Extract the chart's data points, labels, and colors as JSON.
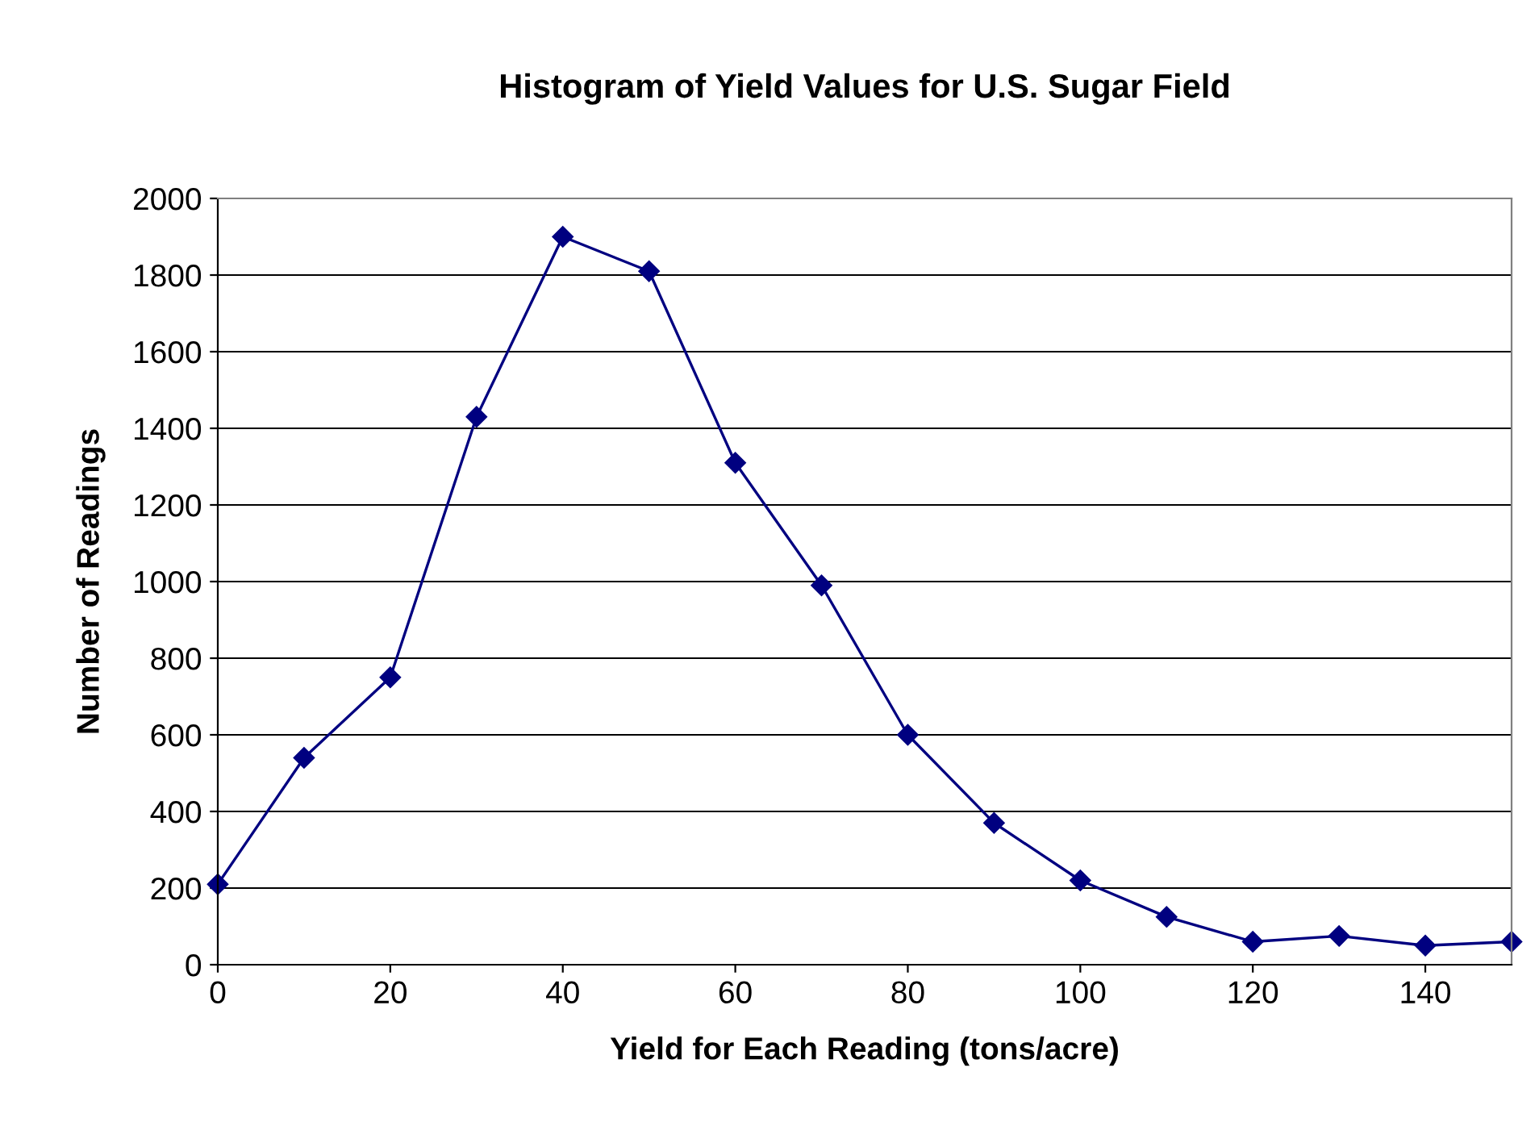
{
  "chart_data": {
    "type": "line",
    "title": "Histogram of Yield Values for U.S. Sugar Field",
    "xlabel": "Yield for Each Reading (tons/acre)",
    "ylabel": "Number of Readings",
    "x": [
      0,
      10,
      20,
      30,
      40,
      50,
      60,
      70,
      80,
      90,
      100,
      110,
      120,
      130,
      140,
      150
    ],
    "series": [
      {
        "color": "#000080",
        "values": [
          210,
          540,
          750,
          1430,
          1900,
          1810,
          1310,
          990,
          600,
          370,
          220,
          125,
          60,
          75,
          50,
          60
        ]
      }
    ],
    "xlim": [
      0,
      150
    ],
    "xticks": [
      0,
      20,
      40,
      60,
      80,
      100,
      120,
      140
    ],
    "ylim": [
      0,
      2000
    ],
    "yticks": [
      0,
      200,
      400,
      600,
      800,
      1000,
      1200,
      1400,
      1600,
      1800,
      2000
    ],
    "grid": "y",
    "marker": "diamond",
    "line_style": "solid",
    "legend": false
  }
}
